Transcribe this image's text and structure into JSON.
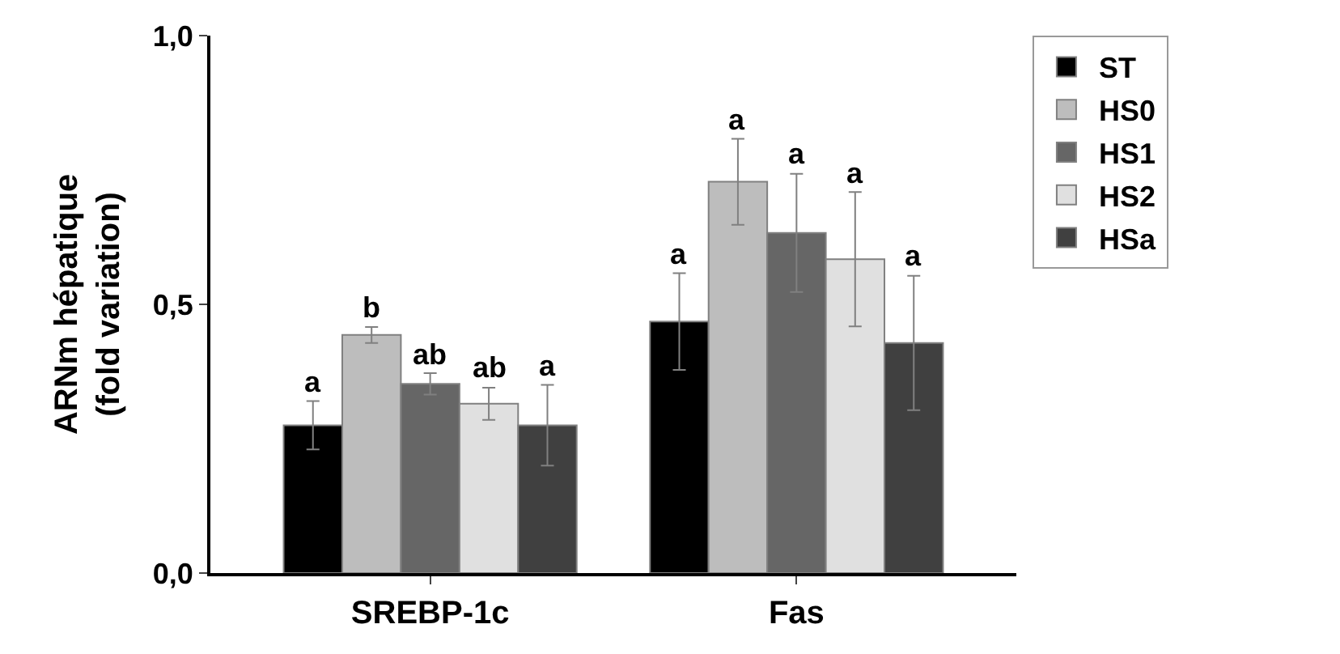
{
  "chart_data": {
    "type": "bar",
    "ylabel": "ARNm hépatique\n(fold variation)",
    "categories": [
      "SREBP-1c",
      "Fas"
    ],
    "series": [
      {
        "name": "ST",
        "color": "#000000",
        "values": [
          0.275,
          0.468
        ],
        "errors": [
          0.045,
          0.09
        ],
        "value_labels": [
          "a",
          "a"
        ]
      },
      {
        "name": "HS0",
        "color": "#bdbdbd",
        "values": [
          0.443,
          0.728
        ],
        "errors": [
          0.015,
          0.08
        ],
        "value_labels": [
          "b",
          "a"
        ]
      },
      {
        "name": "HS1",
        "color": "#666666",
        "values": [
          0.352,
          0.633
        ],
        "errors": [
          0.02,
          0.11
        ],
        "value_labels": [
          "ab",
          "a"
        ]
      },
      {
        "name": "HS2",
        "color": "#e0e0e0",
        "values": [
          0.315,
          0.584
        ],
        "errors": [
          0.03,
          0.125
        ],
        "value_labels": [
          "ab",
          "a"
        ]
      },
      {
        "name": "HSa",
        "color": "#404040",
        "values": [
          0.275,
          0.428
        ],
        "errors": [
          0.075,
          0.125
        ],
        "value_labels": [
          "a",
          "a"
        ]
      }
    ],
    "ylim": [
      0,
      1.0
    ],
    "yticks": [
      {
        "value": 0,
        "label": "0,0"
      },
      {
        "value": 0.5,
        "label": "0,5"
      },
      {
        "value": 1.0,
        "label": "1,0"
      }
    ],
    "legend": "top right"
  }
}
